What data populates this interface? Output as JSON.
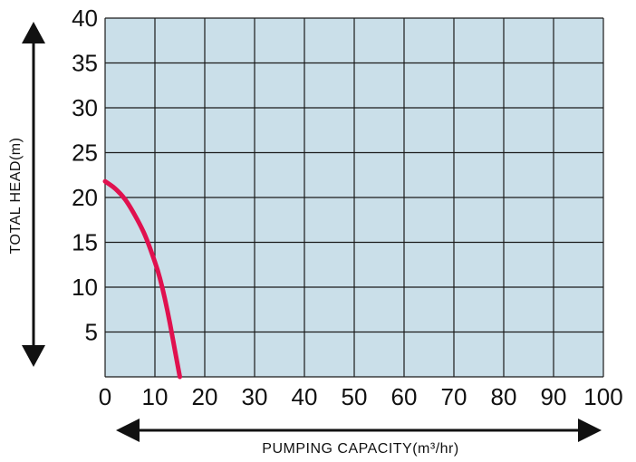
{
  "chart_data": {
    "type": "line",
    "xlabel": "PUMPING CAPACITY(m³/hr)",
    "ylabel": "TOTAL HEAD(m)",
    "xlim": [
      0,
      100
    ],
    "ylim": [
      0,
      40
    ],
    "x_ticks": [
      "0",
      "10",
      "20",
      "30",
      "40",
      "50",
      "60",
      "70",
      "80",
      "90",
      "100"
    ],
    "y_ticks": [
      "5",
      "10",
      "15",
      "20",
      "25",
      "30",
      "35",
      "40"
    ],
    "grid": true,
    "series": [
      {
        "x": [
          0,
          2,
          4,
          6,
          8,
          10,
          11,
          12,
          13,
          14,
          15
        ],
        "y": [
          21.8,
          21,
          19.8,
          18,
          15.8,
          12.8,
          11,
          8.7,
          6,
          3,
          0
        ]
      }
    ],
    "colors": {
      "curve": "#e0114f",
      "plot_background": "#cadfe9",
      "grid": "#1b1b1b",
      "arrow": "#111111"
    }
  }
}
